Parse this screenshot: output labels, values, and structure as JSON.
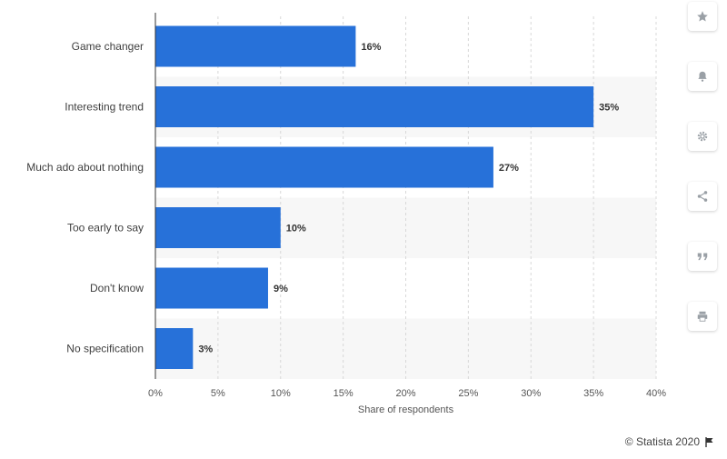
{
  "chart_data": {
    "type": "bar",
    "orientation": "horizontal",
    "categories": [
      "Game changer",
      "Interesting trend",
      "Much ado about nothing",
      "Too early to say",
      "Don't know",
      "No specification"
    ],
    "values": [
      16,
      35,
      27,
      10,
      9,
      3
    ],
    "data_labels": [
      "16%",
      "35%",
      "27%",
      "10%",
      "9%",
      "3%"
    ],
    "xlabel": "Share of respondents",
    "ylabel": "",
    "title": "",
    "xlim": [
      0,
      40
    ],
    "ticks": [
      0,
      5,
      10,
      15,
      20,
      25,
      30,
      35,
      40
    ],
    "tick_labels": [
      "0%",
      "5%",
      "10%",
      "15%",
      "20%",
      "25%",
      "30%",
      "35%",
      "40%"
    ],
    "grid": "vertical dashed",
    "bar_color": "#2771d9",
    "band_color": "#f7f7f7"
  },
  "toolbar": {
    "icons": [
      "star-icon",
      "bell-icon",
      "gear-icon",
      "share-icon",
      "quote-icon",
      "print-icon"
    ]
  },
  "footer": {
    "copyright": "© Statista 2020"
  }
}
